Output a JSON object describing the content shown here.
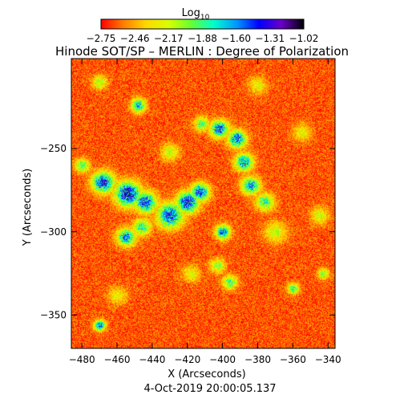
{
  "chart_data": {
    "type": "heatmap",
    "title": "Hinode SOT/SP – MERLIN : Degree of Polarization",
    "xlabel": "X (Arcseconds)",
    "ylabel": "Y (Arcseconds)",
    "date": "4-Oct-2019 20:00:05.137",
    "colorbar": {
      "label_main": "Log",
      "label_sub": "10",
      "ticks": [
        "-2.75",
        "-2.46",
        "-2.17",
        "-1.88",
        "-1.60",
        "-1.31",
        "-1.02"
      ],
      "range": [
        -2.75,
        -1.02
      ],
      "colors": [
        "#ff0000",
        "#ff7f00",
        "#ffd800",
        "#d8ff00",
        "#66ff33",
        "#00ffcc",
        "#0099ff",
        "#0000ff",
        "#6a00c8",
        "#000000"
      ]
    },
    "xlim": [
      -486,
      -336
    ],
    "ylim": [
      -370,
      -196
    ],
    "xticks": [
      -480,
      -460,
      -440,
      -420,
      -400,
      -380,
      -360,
      -340
    ],
    "xtick_labels": [
      "-480",
      "-460",
      "-440",
      "-420",
      "-400",
      "-380",
      "-360",
      "-340"
    ],
    "yticks": [
      -250,
      -300,
      -350
    ],
    "ytick_labels": [
      "-250",
      "-300",
      "-350"
    ],
    "background_level": -2.62,
    "noise_amplitude": 0.15,
    "features": [
      {
        "x": -454,
        "y": -277,
        "amplitude": 1.55,
        "spread": 7
      },
      {
        "x": -468,
        "y": -270,
        "amplitude": 1.4,
        "spread": 6
      },
      {
        "x": -444,
        "y": -282,
        "amplitude": 1.35,
        "spread": 6
      },
      {
        "x": -430,
        "y": -290,
        "amplitude": 1.35,
        "spread": 7
      },
      {
        "x": -420,
        "y": -282,
        "amplitude": 1.45,
        "spread": 6
      },
      {
        "x": -413,
        "y": -276,
        "amplitude": 1.35,
        "spread": 5
      },
      {
        "x": -455,
        "y": -303,
        "amplitude": 1.2,
        "spread": 5
      },
      {
        "x": -446,
        "y": -297,
        "amplitude": 0.9,
        "spread": 5
      },
      {
        "x": -400,
        "y": -300,
        "amplitude": 1.25,
        "spread": 4
      },
      {
        "x": -402,
        "y": -238,
        "amplitude": 1.3,
        "spread": 5
      },
      {
        "x": -392,
        "y": -244,
        "amplitude": 1.3,
        "spread": 5
      },
      {
        "x": -388,
        "y": -258,
        "amplitude": 1.2,
        "spread": 5
      },
      {
        "x": -384,
        "y": -272,
        "amplitude": 1.15,
        "spread": 5
      },
      {
        "x": -376,
        "y": -282,
        "amplitude": 0.9,
        "spread": 5
      },
      {
        "x": -412,
        "y": -235,
        "amplitude": 0.85,
        "spread": 4
      },
      {
        "x": -470,
        "y": -356,
        "amplitude": 1.3,
        "spread": 3
      },
      {
        "x": -448,
        "y": -224,
        "amplitude": 1.1,
        "spread": 4
      },
      {
        "x": -480,
        "y": -260,
        "amplitude": 0.8,
        "spread": 4
      },
      {
        "x": -396,
        "y": -330,
        "amplitude": 0.85,
        "spread": 4
      },
      {
        "x": -360,
        "y": -334,
        "amplitude": 0.95,
        "spread": 3
      },
      {
        "x": -403,
        "y": -320,
        "amplitude": 0.7,
        "spread": 4
      },
      {
        "x": -470,
        "y": -210,
        "amplitude": 0.65,
        "spread": 4
      },
      {
        "x": -430,
        "y": -252,
        "amplitude": 0.55,
        "spread": 5
      },
      {
        "x": -370,
        "y": -300,
        "amplitude": 0.55,
        "spread": 6
      },
      {
        "x": -343,
        "y": -325,
        "amplitude": 0.7,
        "spread": 3
      },
      {
        "x": -345,
        "y": -290,
        "amplitude": 0.5,
        "spread": 5
      },
      {
        "x": -418,
        "y": -325,
        "amplitude": 0.45,
        "spread": 5
      },
      {
        "x": -460,
        "y": -338,
        "amplitude": 0.45,
        "spread": 5
      },
      {
        "x": -380,
        "y": -212,
        "amplitude": 0.45,
        "spread": 5
      },
      {
        "x": -355,
        "y": -240,
        "amplitude": 0.45,
        "spread": 5
      }
    ]
  }
}
